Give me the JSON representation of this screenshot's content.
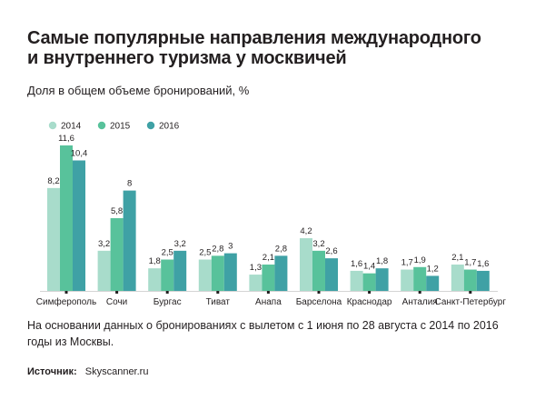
{
  "source": {
    "label": "Источник:",
    "value": "Skyscanner.ru"
  },
  "footnote": "На основании данных о бронированиях с вылетом с 1 июня по 28 августа с 2014 по 2016 годы из Москвы.",
  "chart_data": {
    "type": "bar",
    "title_line1": "Самые популярные направления международного",
    "title_line2": "и внутреннего туризма у москвичей",
    "subtitle": "Доля в общем объеме бронирований, %",
    "xlabel": "",
    "ylabel": "",
    "legend_position": "top-left",
    "grid": false,
    "ylim": [
      0,
      12
    ],
    "categories": [
      "Симферополь",
      "Сочи",
      "Бургас",
      "Тиват",
      "Анапа",
      "Барселона",
      "Краснодар",
      "Анталия",
      "Санкт-Петербург"
    ],
    "series": [
      {
        "name": "2014",
        "color": "#a8dccb",
        "values": [
          8.2,
          3.2,
          1.8,
          2.5,
          1.3,
          4.2,
          1.6,
          1.7,
          2.1
        ]
      },
      {
        "name": "2015",
        "color": "#58c29b",
        "values": [
          11.6,
          5.8,
          2.5,
          2.8,
          2.1,
          3.2,
          1.4,
          1.9,
          1.7
        ]
      },
      {
        "name": "2016",
        "color": "#3fa1a5",
        "values": [
          10.4,
          8,
          3.2,
          3,
          2.8,
          2.6,
          1.8,
          1.2,
          1.6
        ]
      }
    ]
  }
}
